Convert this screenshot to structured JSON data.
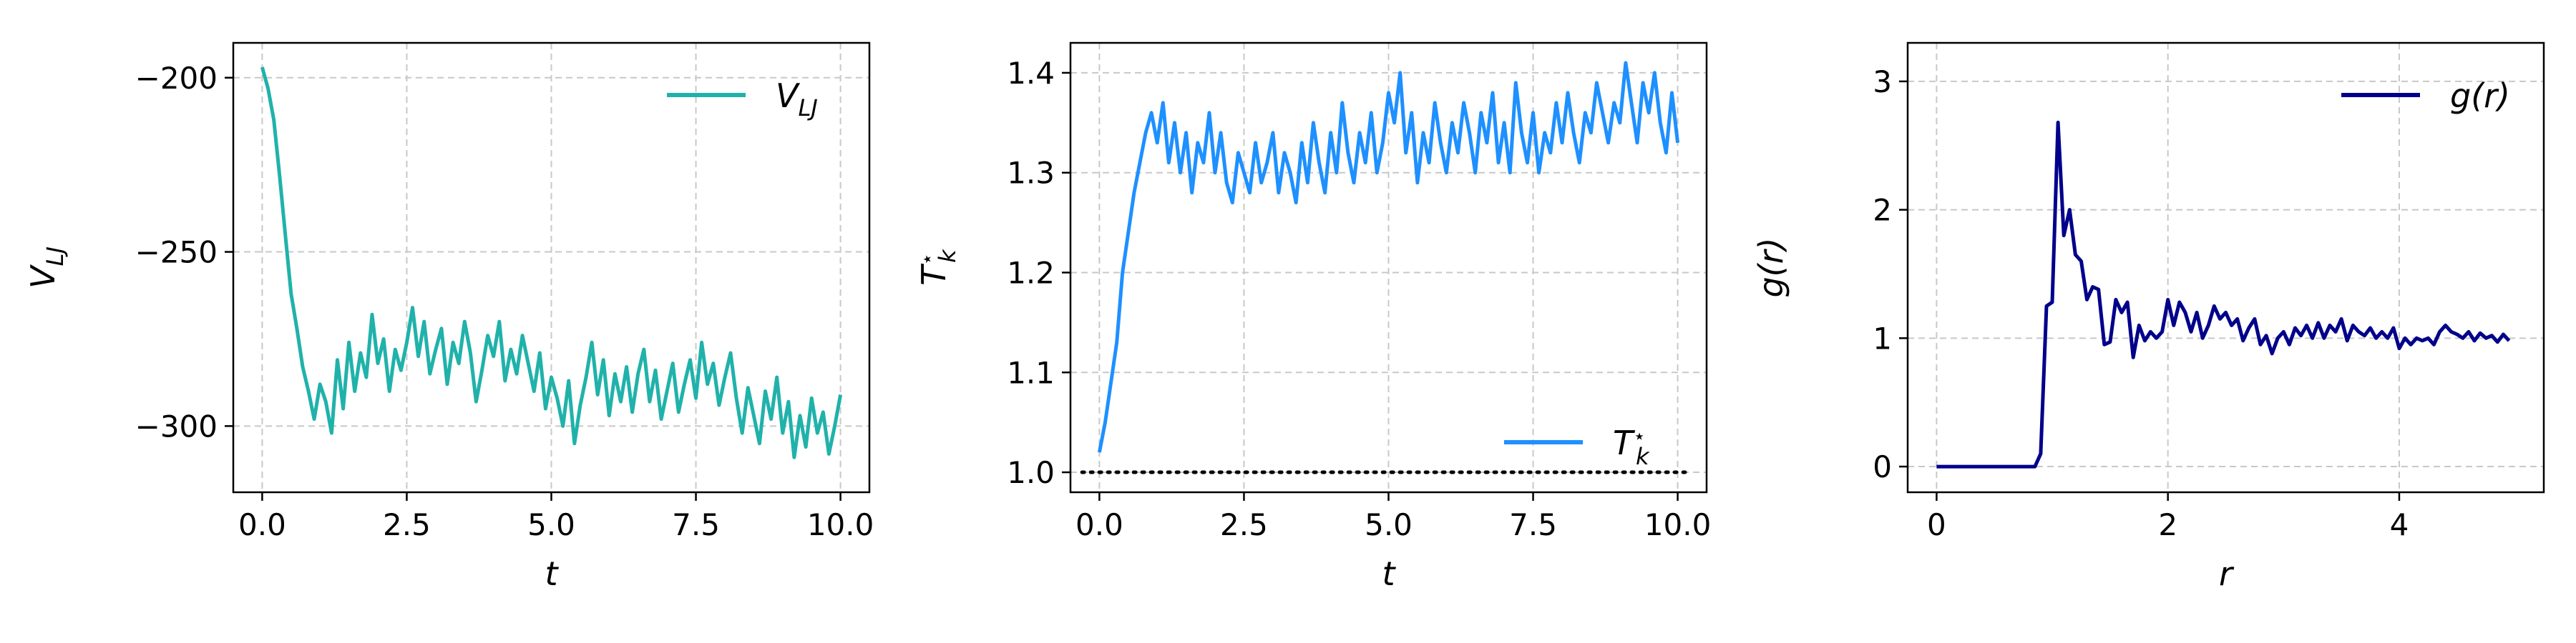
{
  "chart_data": [
    {
      "type": "line",
      "xlabel": "t",
      "ylabel_parts": {
        "base": "V",
        "sub": "LJ"
      },
      "xlim": [
        -0.5,
        10.5
      ],
      "ylim": [
        -319,
        -190
      ],
      "xticks": [
        0,
        2.5,
        5,
        7.5,
        10
      ],
      "xtick_labels": [
        "0.0",
        "2.5",
        "5.0",
        "7.5",
        "10.0"
      ],
      "yticks": [
        -200,
        -250,
        -300
      ],
      "ytick_labels": [
        "−200",
        "−250",
        "−300"
      ],
      "grid": true,
      "legend_position": "top-right",
      "color": "#20b2aa",
      "series": [
        {
          "name_parts": {
            "base": "V",
            "sub": "LJ"
          },
          "x": [
            0.0,
            0.1,
            0.2,
            0.3,
            0.4,
            0.5,
            0.6,
            0.7,
            0.8,
            0.9,
            1.0,
            1.1,
            1.2,
            1.3,
            1.4,
            1.5,
            1.6,
            1.7,
            1.8,
            1.9,
            2.0,
            2.1,
            2.2,
            2.3,
            2.4,
            2.5,
            2.6,
            2.7,
            2.8,
            2.9,
            3.0,
            3.1,
            3.2,
            3.3,
            3.4,
            3.5,
            3.6,
            3.7,
            3.8,
            3.9,
            4.0,
            4.1,
            4.2,
            4.3,
            4.4,
            4.5,
            4.6,
            4.7,
            4.8,
            4.9,
            5.0,
            5.1,
            5.2,
            5.3,
            5.4,
            5.5,
            5.6,
            5.7,
            5.8,
            5.9,
            6.0,
            6.1,
            6.2,
            6.3,
            6.4,
            6.5,
            6.6,
            6.7,
            6.8,
            6.9,
            7.0,
            7.1,
            7.2,
            7.3,
            7.4,
            7.5,
            7.6,
            7.7,
            7.8,
            7.9,
            8.0,
            8.1,
            8.2,
            8.3,
            8.4,
            8.5,
            8.6,
            8.7,
            8.8,
            8.9,
            9.0,
            9.1,
            9.2,
            9.3,
            9.4,
            9.5,
            9.6,
            9.7,
            9.8,
            9.9,
            10.0
          ],
          "y": [
            -197,
            -203,
            -212,
            -228,
            -245,
            -262,
            -272,
            -283,
            -290,
            -298,
            -288,
            -293,
            -302,
            -281,
            -295,
            -276,
            -290,
            -279,
            -286,
            -268,
            -282,
            -275,
            -290,
            -278,
            -284,
            -276,
            -266,
            -280,
            -270,
            -285,
            -278,
            -272,
            -288,
            -276,
            -282,
            -270,
            -279,
            -293,
            -284,
            -274,
            -280,
            -270,
            -287,
            -278,
            -285,
            -274,
            -282,
            -290,
            -279,
            -295,
            -286,
            -292,
            -300,
            -287,
            -305,
            -294,
            -286,
            -276,
            -291,
            -281,
            -297,
            -285,
            -293,
            -283,
            -296,
            -285,
            -278,
            -293,
            -284,
            -298,
            -290,
            -282,
            -296,
            -288,
            -281,
            -292,
            -276,
            -288,
            -282,
            -294,
            -286,
            -279,
            -292,
            -302,
            -289,
            -297,
            -305,
            -290,
            -298,
            -286,
            -302,
            -293,
            -309,
            -297,
            -306,
            -292,
            -302,
            -296,
            -308,
            -300,
            -291
          ]
        }
      ]
    },
    {
      "type": "line",
      "xlabel": "t",
      "ylabel_parts": {
        "base": "T",
        "sub": "k",
        "sup": "⋆"
      },
      "xlim": [
        -0.5,
        10.5
      ],
      "ylim": [
        0.98,
        1.43
      ],
      "xticks": [
        0,
        2.5,
        5,
        7.5,
        10
      ],
      "xtick_labels": [
        "0.0",
        "2.5",
        "5.0",
        "7.5",
        "10.0"
      ],
      "yticks": [
        1.0,
        1.1,
        1.2,
        1.3,
        1.4
      ],
      "ytick_labels": [
        "1.0",
        "1.1",
        "1.2",
        "1.3",
        "1.4"
      ],
      "grid": true,
      "legend_position": "bottom-right",
      "color": "#1e90ff",
      "reference_line": {
        "y": 1.0,
        "x_range": [
          -0.3,
          10.5
        ],
        "style": "dotted",
        "color": "#000000"
      },
      "series": [
        {
          "name_parts": {
            "base": "T",
            "sub": "k",
            "sup": "⋆"
          },
          "x": [
            0.0,
            0.1,
            0.2,
            0.3,
            0.4,
            0.5,
            0.6,
            0.7,
            0.8,
            0.9,
            1.0,
            1.1,
            1.2,
            1.3,
            1.4,
            1.5,
            1.6,
            1.7,
            1.8,
            1.9,
            2.0,
            2.1,
            2.2,
            2.3,
            2.4,
            2.5,
            2.6,
            2.7,
            2.8,
            2.9,
            3.0,
            3.1,
            3.2,
            3.3,
            3.4,
            3.5,
            3.6,
            3.7,
            3.8,
            3.9,
            4.0,
            4.1,
            4.2,
            4.3,
            4.4,
            4.5,
            4.6,
            4.7,
            4.8,
            4.9,
            5.0,
            5.1,
            5.2,
            5.3,
            5.4,
            5.5,
            5.6,
            5.7,
            5.8,
            5.9,
            6.0,
            6.1,
            6.2,
            6.3,
            6.4,
            6.5,
            6.6,
            6.7,
            6.8,
            6.9,
            7.0,
            7.1,
            7.2,
            7.3,
            7.4,
            7.5,
            7.6,
            7.7,
            7.8,
            7.9,
            8.0,
            8.1,
            8.2,
            8.3,
            8.4,
            8.5,
            8.6,
            8.7,
            8.8,
            8.9,
            9.0,
            9.1,
            9.2,
            9.3,
            9.4,
            9.5,
            9.6,
            9.7,
            9.8,
            9.9,
            10.0
          ],
          "y": [
            1.02,
            1.05,
            1.09,
            1.13,
            1.2,
            1.24,
            1.28,
            1.31,
            1.34,
            1.36,
            1.33,
            1.37,
            1.31,
            1.35,
            1.3,
            1.34,
            1.28,
            1.33,
            1.31,
            1.36,
            1.3,
            1.34,
            1.29,
            1.27,
            1.32,
            1.3,
            1.28,
            1.33,
            1.29,
            1.31,
            1.34,
            1.28,
            1.32,
            1.3,
            1.27,
            1.33,
            1.29,
            1.35,
            1.31,
            1.28,
            1.34,
            1.3,
            1.37,
            1.32,
            1.29,
            1.34,
            1.31,
            1.36,
            1.3,
            1.33,
            1.38,
            1.35,
            1.4,
            1.32,
            1.36,
            1.29,
            1.34,
            1.31,
            1.37,
            1.33,
            1.3,
            1.35,
            1.32,
            1.37,
            1.34,
            1.3,
            1.36,
            1.33,
            1.38,
            1.31,
            1.35,
            1.3,
            1.39,
            1.34,
            1.31,
            1.36,
            1.3,
            1.34,
            1.32,
            1.37,
            1.33,
            1.38,
            1.34,
            1.31,
            1.36,
            1.34,
            1.39,
            1.36,
            1.33,
            1.37,
            1.35,
            1.41,
            1.37,
            1.33,
            1.39,
            1.36,
            1.4,
            1.35,
            1.32,
            1.38,
            1.33
          ]
        }
      ]
    },
    {
      "type": "line",
      "xlabel": "r",
      "ylabel": "g(r)",
      "xlim": [
        -0.25,
        5.25
      ],
      "ylim": [
        -0.2,
        3.3
      ],
      "xticks": [
        0,
        2,
        4
      ],
      "xtick_labels": [
        "0",
        "2",
        "4"
      ],
      "yticks": [
        0,
        1,
        2,
        3
      ],
      "ytick_labels": [
        "0",
        "1",
        "2",
        "3"
      ],
      "grid": true,
      "legend_position": "top-right",
      "color": "#00008b",
      "series": [
        {
          "name": "g(r)",
          "x": [
            0.0,
            0.05,
            0.1,
            0.15,
            0.2,
            0.25,
            0.3,
            0.35,
            0.4,
            0.45,
            0.5,
            0.55,
            0.6,
            0.65,
            0.7,
            0.75,
            0.8,
            0.85,
            0.9,
            0.95,
            1.0,
            1.05,
            1.1,
            1.15,
            1.2,
            1.25,
            1.3,
            1.35,
            1.4,
            1.45,
            1.5,
            1.55,
            1.6,
            1.65,
            1.7,
            1.75,
            1.8,
            1.85,
            1.9,
            1.95,
            2.0,
            2.05,
            2.1,
            2.15,
            2.2,
            2.25,
            2.3,
            2.35,
            2.4,
            2.45,
            2.5,
            2.55,
            2.6,
            2.65,
            2.7,
            2.75,
            2.8,
            2.85,
            2.9,
            2.95,
            3.0,
            3.05,
            3.1,
            3.15,
            3.2,
            3.25,
            3.3,
            3.35,
            3.4,
            3.45,
            3.5,
            3.55,
            3.6,
            3.65,
            3.7,
            3.75,
            3.8,
            3.85,
            3.9,
            3.95,
            4.0,
            4.05,
            4.1,
            4.15,
            4.2,
            4.25,
            4.3,
            4.35,
            4.4,
            4.45,
            4.5,
            4.55,
            4.6,
            4.65,
            4.7,
            4.75,
            4.8,
            4.85,
            4.9,
            4.95
          ],
          "y": [
            0.0,
            0.0,
            0.0,
            0.0,
            0.0,
            0.0,
            0.0,
            0.0,
            0.0,
            0.0,
            0.0,
            0.0,
            0.0,
            0.0,
            0.0,
            0.0,
            0.0,
            0.0,
            0.1,
            1.25,
            1.28,
            2.68,
            1.8,
            2.0,
            1.65,
            1.6,
            1.3,
            1.4,
            1.38,
            0.95,
            0.97,
            1.3,
            1.2,
            1.28,
            0.85,
            1.1,
            0.98,
            1.05,
            1.0,
            1.05,
            1.3,
            1.1,
            1.28,
            1.2,
            1.05,
            1.2,
            1.0,
            1.1,
            1.25,
            1.15,
            1.2,
            1.1,
            1.15,
            0.98,
            1.08,
            1.15,
            0.95,
            1.02,
            0.88,
            1.0,
            1.05,
            0.95,
            1.08,
            1.02,
            1.1,
            1.0,
            1.12,
            1.0,
            1.1,
            1.05,
            1.15,
            0.98,
            1.1,
            1.05,
            1.02,
            1.08,
            1.0,
            1.05,
            1.0,
            1.08,
            0.92,
            1.0,
            0.95,
            1.0,
            0.98,
            1.0,
            0.95,
            1.05,
            1.1,
            1.05,
            1.03,
            1.0,
            1.05,
            0.98,
            1.04,
            1.0,
            1.02,
            0.97,
            1.03,
            0.98
          ]
        }
      ]
    }
  ]
}
